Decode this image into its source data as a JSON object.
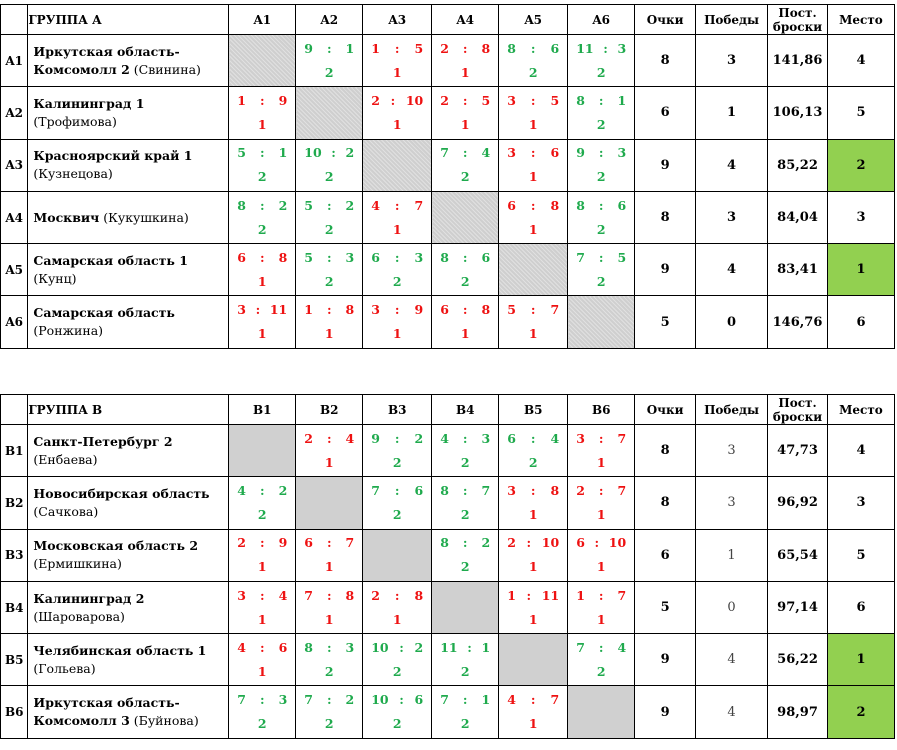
{
  "headers": {
    "points": "Очки",
    "wins": "Победы",
    "throws": "Пост.\nброски",
    "place": "Место"
  },
  "groups": [
    {
      "title": "ГРУППА А",
      "cols": [
        "A1",
        "A2",
        "A3",
        "A4",
        "A5",
        "A6"
      ],
      "rows": [
        {
          "code": "A1",
          "team": "Иркутская область-Комсомолл 2",
          "coach": "(Свинина)",
          "cells": [
            null,
            [
              "9",
              "1",
              "2"
            ],
            [
              "1",
              "5",
              "1"
            ],
            [
              "2",
              "8",
              "1"
            ],
            [
              "8",
              "6",
              "2"
            ],
            [
              "11",
              "3",
              "2"
            ]
          ],
          "points": "8",
          "wins": "3",
          "throws": "141,86",
          "place": "4",
          "highlight": false
        },
        {
          "code": "A2",
          "team": "Калининград 1",
          "coach": "(Трофимова)",
          "cells": [
            [
              "1",
              "9",
              "1"
            ],
            null,
            [
              "2",
              "10",
              "1"
            ],
            [
              "2",
              "5",
              "1"
            ],
            [
              "3",
              "5",
              "1"
            ],
            [
              "8",
              "1",
              "2"
            ]
          ],
          "points": "6",
          "wins": "1",
          "throws": "106,13",
          "place": "5",
          "highlight": false
        },
        {
          "code": "A3",
          "team": "Красноярский край 1",
          "coach": "(Кузнецова)",
          "cells": [
            [
              "5",
              "1",
              "2"
            ],
            [
              "10",
              "2",
              "2"
            ],
            null,
            [
              "7",
              "4",
              "2"
            ],
            [
              "3",
              "6",
              "1"
            ],
            [
              "9",
              "3",
              "2"
            ]
          ],
          "points": "9",
          "wins": "4",
          "throws": "85,22",
          "place": "2",
          "highlight": true
        },
        {
          "code": "A4",
          "team": "Москвич",
          "coach": "(Кукушкина)",
          "cells": [
            [
              "8",
              "2",
              "2"
            ],
            [
              "5",
              "2",
              "2"
            ],
            [
              "4",
              "7",
              "1"
            ],
            null,
            [
              "6",
              "8",
              "1"
            ],
            [
              "8",
              "6",
              "2"
            ]
          ],
          "points": "8",
          "wins": "3",
          "throws": "84,04",
          "place": "3",
          "highlight": false
        },
        {
          "code": "A5",
          "team": "Самарская область 1",
          "coach": "(Кунц)",
          "cells": [
            [
              "6",
              "8",
              "1"
            ],
            [
              "5",
              "3",
              "2"
            ],
            [
              "6",
              "3",
              "2"
            ],
            [
              "8",
              "6",
              "2"
            ],
            null,
            [
              "7",
              "5",
              "2"
            ]
          ],
          "points": "9",
          "wins": "4",
          "throws": "83,41",
          "place": "1",
          "highlight": true
        },
        {
          "code": "A6",
          "team": "Самарская область",
          "coach": "(Ронжина)",
          "cells": [
            [
              "3",
              "11",
              "1"
            ],
            [
              "1",
              "8",
              "1"
            ],
            [
              "3",
              "9",
              "1"
            ],
            [
              "6",
              "8",
              "1"
            ],
            [
              "5",
              "7",
              "1"
            ],
            null
          ],
          "points": "5",
          "wins": "0",
          "throws": "146,76",
          "place": "6",
          "highlight": false
        }
      ]
    },
    {
      "title": "ГРУППА В",
      "cols": [
        "B1",
        "B2",
        "B3",
        "B4",
        "B5",
        "B6"
      ],
      "rows": [
        {
          "code": "B1",
          "team": "Санкт-Петербург 2",
          "coach": "(Енбаева)",
          "cells": [
            null,
            [
              "2",
              "4",
              "1"
            ],
            [
              "9",
              "2",
              "2"
            ],
            [
              "4",
              "3",
              "2"
            ],
            [
              "6",
              "4",
              "2"
            ],
            [
              "3",
              "7",
              "1"
            ]
          ],
          "points": "8",
          "wins": "3",
          "throws": "47,73",
          "place": "4",
          "highlight": false
        },
        {
          "code": "B2",
          "team": "Новосибирская область",
          "coach": "(Сачкова)",
          "cells": [
            [
              "4",
              "2",
              "2"
            ],
            null,
            [
              "7",
              "6",
              "2"
            ],
            [
              "8",
              "7",
              "2"
            ],
            [
              "3",
              "8",
              "1"
            ],
            [
              "2",
              "7",
              "1"
            ]
          ],
          "points": "8",
          "wins": "3",
          "throws": "96,92",
          "place": "3",
          "highlight": false
        },
        {
          "code": "B3",
          "team": "Московская область 2",
          "coach": "(Ермишкина)",
          "cells": [
            [
              "2",
              "9",
              "1"
            ],
            [
              "6",
              "7",
              "1"
            ],
            null,
            [
              "8",
              "2",
              "2"
            ],
            [
              "2",
              "10",
              "1"
            ],
            [
              "6",
              "10",
              "1"
            ]
          ],
          "points": "6",
          "wins": "1",
          "throws": "65,54",
          "place": "5",
          "highlight": false
        },
        {
          "code": "B4",
          "team": "Калининград 2",
          "coach": "(Шароварова)",
          "cells": [
            [
              "3",
              "4",
              "1"
            ],
            [
              "7",
              "8",
              "1"
            ],
            [
              "2",
              "8",
              "1"
            ],
            null,
            [
              "1",
              "11",
              "1"
            ],
            [
              "1",
              "7",
              "1"
            ]
          ],
          "points": "5",
          "wins": "0",
          "throws": "97,14",
          "place": "6",
          "highlight": false
        },
        {
          "code": "B5",
          "team": "Челябинская область 1",
          "coach": "(Гольева)",
          "cells": [
            [
              "4",
              "6",
              "1"
            ],
            [
              "8",
              "3",
              "2"
            ],
            [
              "10",
              "2",
              "2"
            ],
            [
              "11",
              "1",
              "2"
            ],
            null,
            [
              "7",
              "4",
              "2"
            ]
          ],
          "points": "9",
          "wins": "4",
          "throws": "56,22",
          "place": "1",
          "highlight": true
        },
        {
          "code": "B6",
          "team": "Иркутская область-Комсомолл 3",
          "coach": "(Буйнова)",
          "cells": [
            [
              "7",
              "3",
              "2"
            ],
            [
              "7",
              "2",
              "2"
            ],
            [
              "10",
              "6",
              "2"
            ],
            [
              "7",
              "1",
              "2"
            ],
            [
              "4",
              "7",
              "1"
            ],
            null
          ],
          "points": "9",
          "wins": "4",
          "throws": "98,97",
          "place": "2",
          "highlight": true
        }
      ]
    }
  ]
}
